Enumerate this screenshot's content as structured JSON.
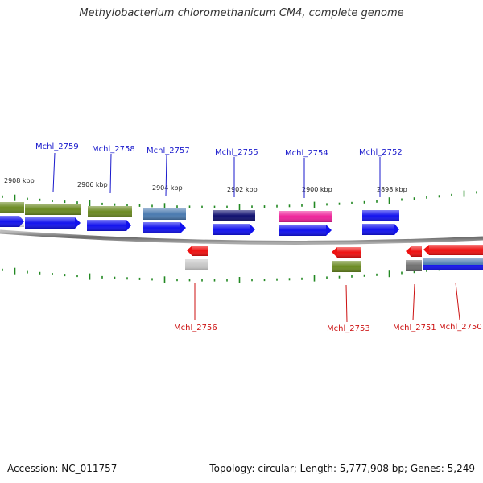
{
  "title": "Methylobacterium chloromethanicum CM4, complete genome",
  "footer": {
    "accession": "Accession: NC_011757",
    "summary": "Topology: circular; Length: 5,777,908 bp; Genes: 5,249"
  },
  "scale_labels": [
    "2908 kbp",
    "2906 kbp",
    "2904 kbp",
    "2902 kbp",
    "2900 kbp",
    "2898 kbp"
  ],
  "colors": {
    "forward_label": "#1a1acc",
    "reverse_label": "#cc1111",
    "backbone": "#888888",
    "tick": "#228822",
    "cds_forward": "#1212ee",
    "cds_reverse": "#ee1111",
    "olive": "#6b8a22",
    "steel_blue": "#4a7ab0",
    "navy": "#101070",
    "magenta": "#ee2299",
    "light_grey": "#c8c8c8",
    "dark_grey": "#707070"
  },
  "genes_forward": [
    {
      "label": "Mchl_2759",
      "category_color": "olive"
    },
    {
      "label": "Mchl_2758",
      "category_color": "olive"
    },
    {
      "label": "Mchl_2757",
      "category_color": "steel_blue"
    },
    {
      "label": "Mchl_2755",
      "category_color": "navy"
    },
    {
      "label": "Mchl_2754",
      "category_color": "magenta"
    },
    {
      "label": "Mchl_2752",
      "category_color": "cds_forward"
    }
  ],
  "genes_reverse": [
    {
      "label": "Mchl_2756",
      "category_color": "light_grey"
    },
    {
      "label": "Mchl_2753",
      "category_color": "olive"
    },
    {
      "label": "Mchl_2751",
      "category_color": "dark_grey"
    },
    {
      "label": "Mchl_2750",
      "category_color": "steel_blue"
    }
  ]
}
